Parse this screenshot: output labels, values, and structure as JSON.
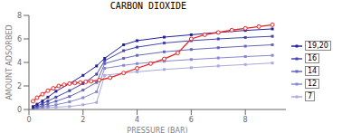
{
  "chart_data": {
    "type": "line",
    "title": "CARBON DIOXIDE",
    "xlabel": "PRESSURE (BAR)",
    "ylabel": "AMOUNT ADSORBED",
    "xlim": [
      0,
      9.5
    ],
    "ylim": [
      0,
      8
    ],
    "xticks": [
      0,
      2,
      4,
      6,
      8
    ],
    "yticks": [
      0,
      2,
      4,
      6,
      8
    ],
    "legend": "right",
    "series": [
      {
        "name": "7",
        "color": "#aaaadd",
        "marker": "square",
        "x": [
          0.15,
          0.3,
          0.5,
          0.7,
          1.0,
          1.5,
          2.0,
          2.5,
          2.8,
          3.5,
          4.0,
          5.0,
          6.0,
          7.0,
          8.0,
          9.0
        ],
        "values": [
          0.05,
          0.08,
          0.12,
          0.16,
          0.2,
          0.25,
          0.4,
          0.6,
          2.9,
          3.1,
          3.2,
          3.4,
          3.55,
          3.7,
          3.82,
          3.95
        ]
      },
      {
        "name": "12",
        "color": "#8888cc",
        "marker": "square",
        "x": [
          0.15,
          0.3,
          0.5,
          0.7,
          1.0,
          1.5,
          2.0,
          2.5,
          2.8,
          3.5,
          4.0,
          5.0,
          6.0,
          7.0,
          8.0,
          9.0
        ],
        "values": [
          0.08,
          0.13,
          0.2,
          0.28,
          0.4,
          0.65,
          1.0,
          1.5,
          3.5,
          3.75,
          3.9,
          4.1,
          4.25,
          4.38,
          4.5,
          4.6
        ]
      },
      {
        "name": "14",
        "color": "#6666bb",
        "marker": "square",
        "x": [
          0.15,
          0.3,
          0.5,
          0.7,
          1.0,
          1.5,
          2.0,
          2.5,
          2.8,
          3.5,
          4.0,
          5.0,
          6.0,
          7.0,
          8.0,
          9.0
        ],
        "values": [
          0.12,
          0.2,
          0.32,
          0.48,
          0.7,
          1.1,
          1.65,
          2.3,
          3.9,
          4.35,
          4.6,
          4.9,
          5.1,
          5.25,
          5.38,
          5.5
        ]
      },
      {
        "name": "16",
        "color": "#4444aa",
        "marker": "square",
        "x": [
          0.15,
          0.3,
          0.5,
          0.7,
          1.0,
          1.5,
          2.0,
          2.5,
          2.8,
          3.5,
          4.0,
          5.0,
          6.0,
          7.0,
          8.0,
          9.0
        ],
        "values": [
          0.18,
          0.3,
          0.5,
          0.72,
          1.05,
          1.6,
          2.2,
          3.0,
          4.15,
          5.0,
          5.3,
          5.65,
          5.85,
          6.0,
          6.12,
          6.22
        ]
      },
      {
        "name": "19,20",
        "color": "#222299",
        "marker": "square",
        "x": [
          0.15,
          0.3,
          0.5,
          0.7,
          1.0,
          1.5,
          2.0,
          2.5,
          2.8,
          3.5,
          4.0,
          5.0,
          6.0,
          7.0,
          8.0,
          9.0
        ],
        "values": [
          0.25,
          0.45,
          0.72,
          1.05,
          1.55,
          2.2,
          2.9,
          3.7,
          4.35,
          5.5,
          5.85,
          6.15,
          6.35,
          6.55,
          6.72,
          6.85
        ]
      },
      {
        "color": "#ee2222",
        "marker": "circle",
        "x": [
          0.15,
          0.3,
          0.5,
          0.7,
          0.9,
          1.1,
          1.3,
          1.5,
          1.7,
          1.9,
          2.1,
          2.3,
          2.6,
          3.0,
          3.5,
          4.0,
          4.5,
          5.0,
          5.5,
          6.0,
          6.5,
          7.0,
          7.5,
          8.0,
          8.5,
          9.0
        ],
        "values": [
          0.7,
          1.0,
          1.3,
          1.6,
          1.8,
          2.0,
          2.1,
          2.2,
          2.25,
          2.3,
          2.35,
          2.4,
          2.5,
          2.7,
          3.1,
          3.5,
          3.9,
          4.3,
          4.8,
          6.0,
          6.35,
          6.55,
          6.75,
          6.9,
          7.05,
          7.2
        ]
      }
    ]
  }
}
